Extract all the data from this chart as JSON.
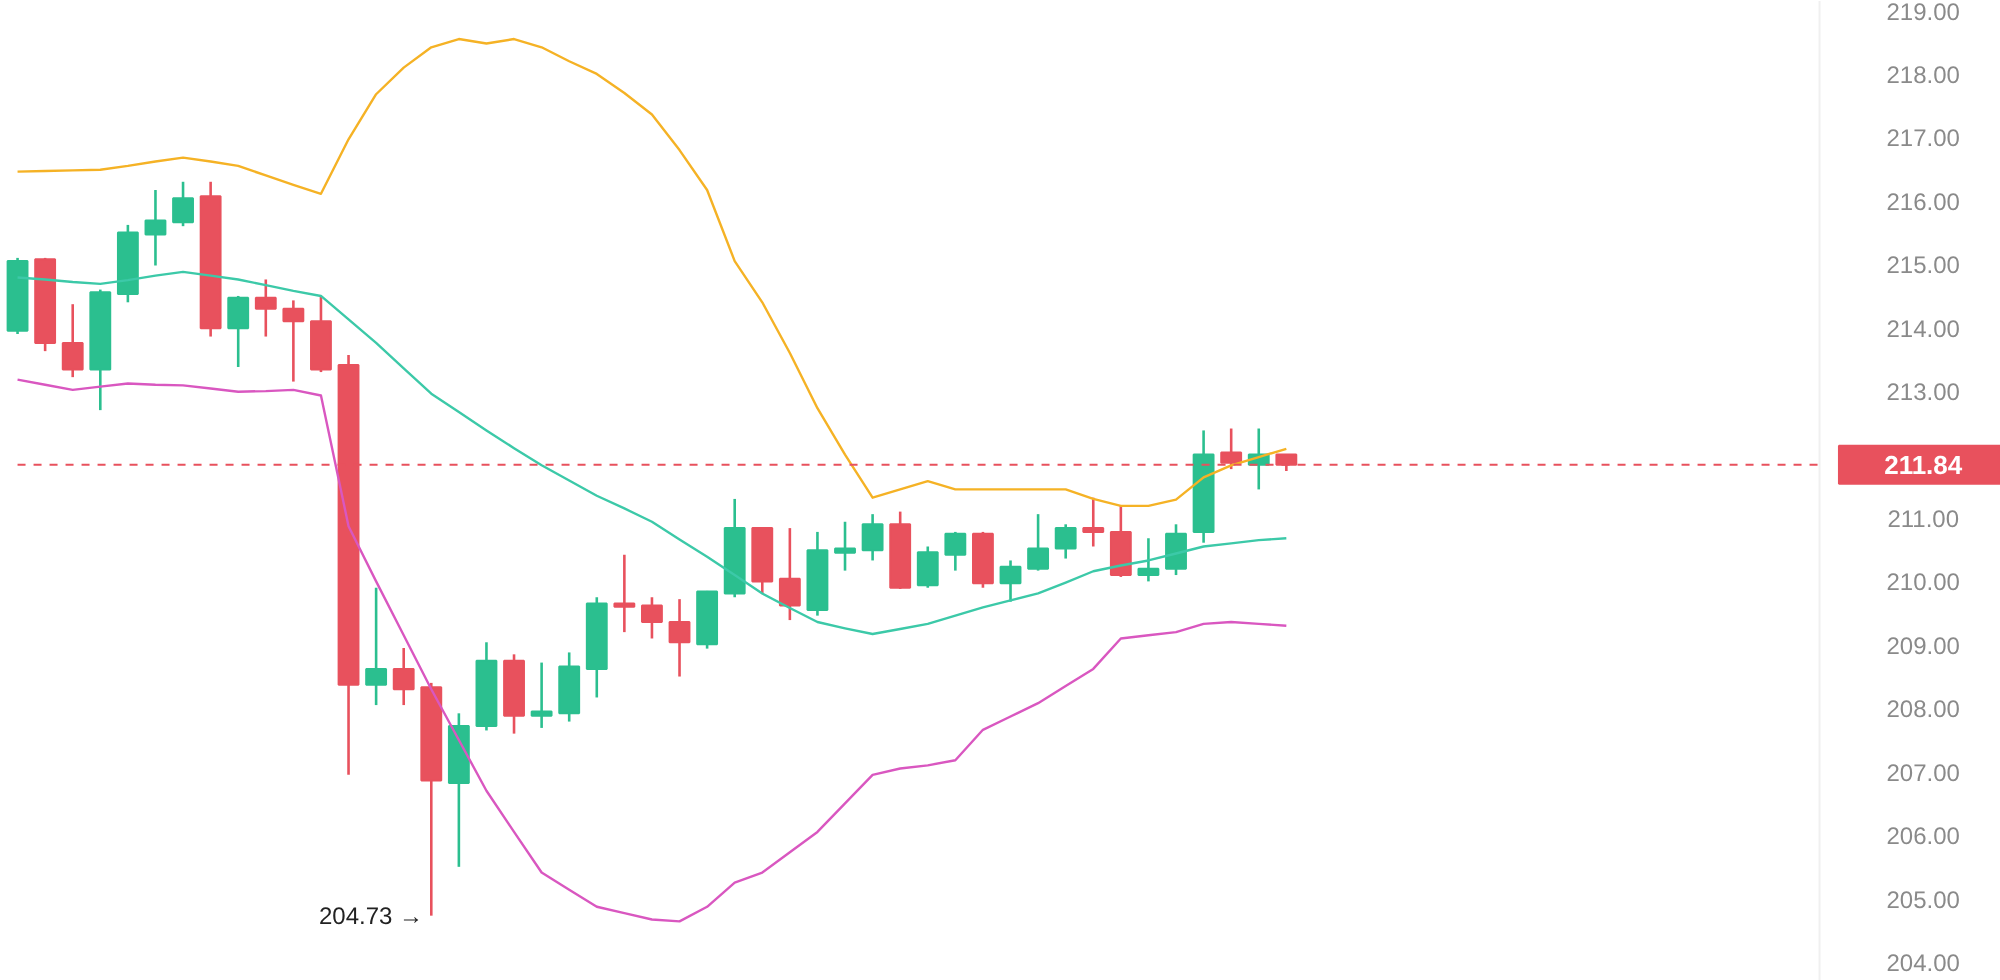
{
  "chart_data": {
    "type": "candlestick",
    "categories": [
      null,
      null,
      null,
      null,
      null,
      null,
      null,
      null,
      null,
      null,
      null,
      null,
      null,
      null,
      null,
      null,
      null,
      null,
      null,
      null,
      null,
      null,
      null,
      null,
      null,
      null,
      null,
      null,
      null,
      null,
      null,
      null,
      null,
      null,
      null,
      null,
      null,
      null,
      null,
      null,
      null,
      null,
      null,
      null,
      null,
      null,
      null
    ],
    "ohlc": [
      [
        213.95,
        215.1,
        213.9,
        215.05
      ],
      [
        215.08,
        215.1,
        213.63,
        213.76
      ],
      [
        213.76,
        214.37,
        213.22,
        213.34
      ],
      [
        213.34,
        214.6,
        212.7,
        214.56
      ],
      [
        214.53,
        215.62,
        214.4,
        215.5
      ],
      [
        215.47,
        216.17,
        214.98,
        215.69
      ],
      [
        215.66,
        216.3,
        215.6,
        216.04
      ],
      [
        216.07,
        216.3,
        213.86,
        213.99
      ],
      [
        213.99,
        214.5,
        213.38,
        214.47
      ],
      [
        214.47,
        214.76,
        213.86,
        214.3
      ],
      [
        214.3,
        214.43,
        213.15,
        214.1
      ],
      [
        214.1,
        214.5,
        213.3,
        213.34
      ],
      [
        213.41,
        213.57,
        206.95,
        208.37
      ],
      [
        208.37,
        209.9,
        208.05,
        208.62
      ],
      [
        208.62,
        208.95,
        208.05,
        208.3
      ],
      [
        208.33,
        208.4,
        204.73,
        206.86
      ],
      [
        206.82,
        207.92,
        205.5,
        207.72
      ],
      [
        207.72,
        209.04,
        207.65,
        208.75
      ],
      [
        208.75,
        208.85,
        207.6,
        207.88
      ],
      [
        207.88,
        208.72,
        207.69,
        207.95
      ],
      [
        207.92,
        208.88,
        207.79,
        208.66
      ],
      [
        208.62,
        209.75,
        208.17,
        209.65
      ],
      [
        209.65,
        210.42,
        209.2,
        209.6
      ],
      [
        209.62,
        209.75,
        209.1,
        209.36
      ],
      [
        209.36,
        209.72,
        208.5,
        209.04
      ],
      [
        209.01,
        209.85,
        208.94,
        209.84
      ],
      [
        209.81,
        211.3,
        209.75,
        210.84
      ],
      [
        210.84,
        210.85,
        209.8,
        210.0
      ],
      [
        210.04,
        210.84,
        209.39,
        209.62
      ],
      [
        209.55,
        210.78,
        209.46,
        210.49
      ],
      [
        210.45,
        210.94,
        210.17,
        210.52
      ],
      [
        210.49,
        211.06,
        210.33,
        210.9
      ],
      [
        210.9,
        211.1,
        209.88,
        209.9
      ],
      [
        209.94,
        210.55,
        209.9,
        210.46
      ],
      [
        210.42,
        210.78,
        210.17,
        210.75
      ],
      [
        210.75,
        210.78,
        209.9,
        209.97
      ],
      [
        209.97,
        210.33,
        209.68,
        210.23
      ],
      [
        210.2,
        211.06,
        210.17,
        210.52
      ],
      [
        210.52,
        210.9,
        210.36,
        210.84
      ],
      [
        210.84,
        211.32,
        210.55,
        210.78
      ],
      [
        210.78,
        211.19,
        210.07,
        210.1
      ],
      [
        210.1,
        210.68,
        210.0,
        210.2
      ],
      [
        210.2,
        210.9,
        210.1,
        210.75
      ],
      [
        210.78,
        212.38,
        210.61,
        212.0
      ],
      [
        212.03,
        212.41,
        211.77,
        211.87
      ],
      [
        211.84,
        212.41,
        211.45,
        212.0
      ],
      [
        212.0,
        212.0,
        211.74,
        211.84
      ]
    ],
    "colors": [
      "#2bbf8f",
      "#e8515d",
      "#e8515d",
      "#2bbf8f",
      "#2bbf8f",
      "#2bbf8f",
      "#2bbf8f",
      "#e8515d",
      "#2bbf8f",
      "#e8515d",
      "#e8515d",
      "#e8515d",
      "#e8515d",
      "#2bbf8f",
      "#e8515d",
      "#e8515d",
      "#2bbf8f",
      "#2bbf8f",
      "#e8515d",
      "#2bbf8f",
      "#2bbf8f",
      "#2bbf8f",
      "#e8515d",
      "#e8515d",
      "#e8515d",
      "#2bbf8f",
      "#2bbf8f",
      "#e8515d",
      "#e8515d",
      "#2bbf8f",
      "#2bbf8f",
      "#2bbf8f",
      "#e8515d",
      "#2bbf8f",
      "#2bbf8f",
      "#e8515d",
      "#2bbf8f",
      "#2bbf8f",
      "#2bbf8f",
      "#e8515d",
      "#e8515d",
      "#2bbf8f",
      "#2bbf8f",
      "#2bbf8f",
      "#e8515d",
      "#2bbf8f",
      "#e8515d"
    ],
    "series": [
      {
        "type": "line",
        "color": "#f5b225",
        "values": [
          216.46,
          216.47,
          216.48,
          216.49,
          216.55,
          216.62,
          216.68,
          216.62,
          216.55,
          216.4,
          216.25,
          216.11,
          216.97,
          217.68,
          218.1,
          218.42,
          218.55,
          218.48,
          218.55,
          218.42,
          218.2,
          218.0,
          217.7,
          217.36,
          216.8,
          216.17,
          215.05,
          214.4,
          213.6,
          212.73,
          212.0,
          211.32,
          211.45,
          211.58,
          211.45,
          211.45,
          211.45,
          211.45,
          211.45,
          211.3,
          211.19,
          211.19,
          211.29,
          211.64,
          211.83,
          211.96,
          212.09
        ]
      },
      {
        "type": "line",
        "color": "#3cc9a8",
        "values": [
          214.79,
          214.76,
          214.72,
          214.69,
          214.75,
          214.82,
          214.88,
          214.82,
          214.76,
          214.67,
          214.58,
          214.5,
          214.13,
          213.76,
          213.36,
          212.96,
          212.67,
          212.38,
          212.1,
          211.83,
          211.59,
          211.35,
          211.15,
          210.94,
          210.66,
          210.39,
          210.1,
          209.81,
          209.58,
          209.36,
          209.26,
          209.17,
          209.25,
          209.33,
          209.46,
          209.59,
          209.7,
          209.81,
          209.98,
          210.16,
          210.25,
          210.33,
          210.44,
          210.55,
          210.6,
          210.65,
          210.68
        ]
      },
      {
        "type": "line",
        "color": "#d957c0",
        "values": [
          213.18,
          213.1,
          213.02,
          213.07,
          213.12,
          213.1,
          213.09,
          213.04,
          212.99,
          213.0,
          213.02,
          212.93,
          210.87,
          210.0,
          209.15,
          208.3,
          207.5,
          206.7,
          206.05,
          205.41,
          205.14,
          204.87,
          204.77,
          204.67,
          204.64,
          204.87,
          205.25,
          205.41,
          205.73,
          206.05,
          206.5,
          206.95,
          207.05,
          207.1,
          207.18,
          207.66,
          207.87,
          208.08,
          208.35,
          208.62,
          209.1,
          209.15,
          209.2,
          209.33,
          209.36,
          209.33,
          209.3
        ]
      }
    ],
    "ylim": [
      203.7,
      219.15
    ],
    "yticks": [
      {
        "value": 204,
        "label": "204.00"
      },
      {
        "value": 205,
        "label": "205.00"
      },
      {
        "value": 206,
        "label": "206.00"
      },
      {
        "value": 207,
        "label": "207.00"
      },
      {
        "value": 208,
        "label": "208.00"
      },
      {
        "value": 209,
        "label": "209.00"
      },
      {
        "value": 210,
        "label": "210.00"
      },
      {
        "value": 211,
        "label": "211.00"
      },
      {
        "value": 213,
        "label": "213.00"
      },
      {
        "value": 214,
        "label": "214.00"
      },
      {
        "value": 215,
        "label": "215.00"
      },
      {
        "value": 216,
        "label": "216.00"
      },
      {
        "value": 217,
        "label": "217.00"
      },
      {
        "value": 218,
        "label": "218.00"
      },
      {
        "value": 219,
        "label": "219.00"
      }
    ],
    "ref_lines": [
      {
        "axis": "y",
        "value": 211.84,
        "label": "211.84",
        "color": "#e8515d",
        "line_style": "dashed"
      }
    ],
    "annotations": [
      "204.73 →"
    ],
    "tick_labels": "y",
    "grid": false
  }
}
